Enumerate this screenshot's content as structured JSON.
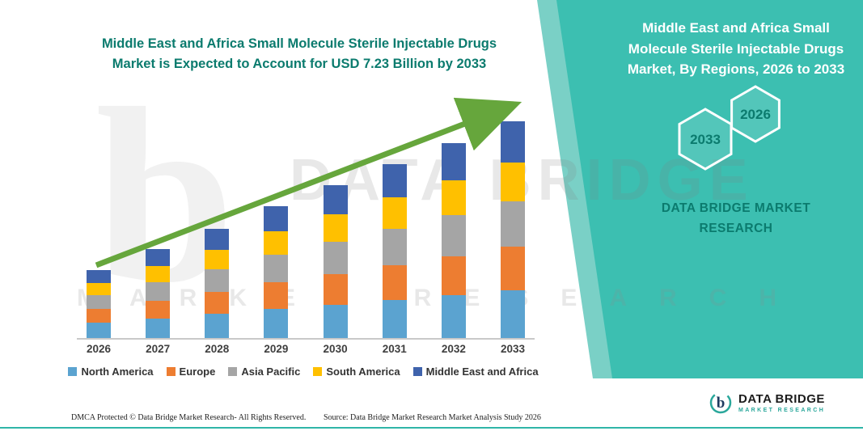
{
  "chart_data": {
    "type": "bar",
    "stacked": true,
    "title": "Middle East and Africa Small Molecule Sterile Injectable Drugs Market is Expected to Account for USD 7.23 Billion by 2033",
    "categories": [
      "2026",
      "2027",
      "2028",
      "2029",
      "2030",
      "2031",
      "2032",
      "2033"
    ],
    "series": [
      {
        "name": "North America",
        "color": "#5BA3D0",
        "values": [
          0.5,
          0.65,
          0.81,
          0.96,
          1.12,
          1.28,
          1.43,
          1.59
        ]
      },
      {
        "name": "Europe",
        "color": "#ED7D31",
        "values": [
          0.45,
          0.59,
          0.73,
          0.88,
          1.02,
          1.16,
          1.3,
          1.45
        ]
      },
      {
        "name": "Asia Pacific",
        "color": "#A5A5A5",
        "values": [
          0.47,
          0.62,
          0.77,
          0.92,
          1.07,
          1.22,
          1.37,
          1.52
        ]
      },
      {
        "name": "South America",
        "color": "#FFC000",
        "values": [
          0.4,
          0.53,
          0.66,
          0.79,
          0.92,
          1.05,
          1.17,
          1.3
        ]
      },
      {
        "name": "Middle East and Africa",
        "color": "#3F63AC",
        "values": [
          0.43,
          0.57,
          0.7,
          0.83,
          0.97,
          1.1,
          1.25,
          1.37
        ]
      }
    ],
    "totals_usd_billion": [
      2.25,
      2.96,
      3.67,
      4.38,
      5.1,
      5.81,
      6.52,
      7.23
    ],
    "units": "USD Billion",
    "ylim": [
      0,
      7.5
    ],
    "xlabel": "",
    "ylabel": "",
    "value_axis_visible": false,
    "grid": false,
    "legend_position": "bottom",
    "annotations": [
      "green upward trend arrow across bars"
    ]
  },
  "side_panel": {
    "title": "Middle East and Africa Small Molecule Sterile Injectable Drugs Market, By Regions, 2026 to 2033",
    "hexagons": [
      "2033",
      "2026"
    ],
    "brand": "DATA BRIDGE MARKET RESEARCH",
    "background_color": "#3CBFB1",
    "text_color": "#0B7B6E"
  },
  "watermark": {
    "glyph": "b",
    "line1": "DATA BRIDGE",
    "line2": "MARKET RESEARCH"
  },
  "logo": {
    "name": "DATA BRIDGE",
    "tagline": "MARKET RESEARCH"
  },
  "footer": {
    "copyright": "DMCA Protected © Data Bridge Market Research-  All Rights Reserved.",
    "source": "Source: Data Bridge Market Research  Market Analysis Study 2026"
  },
  "colors": {
    "arrow_green": "#66A63C",
    "title_teal": "#0B7B6E"
  }
}
